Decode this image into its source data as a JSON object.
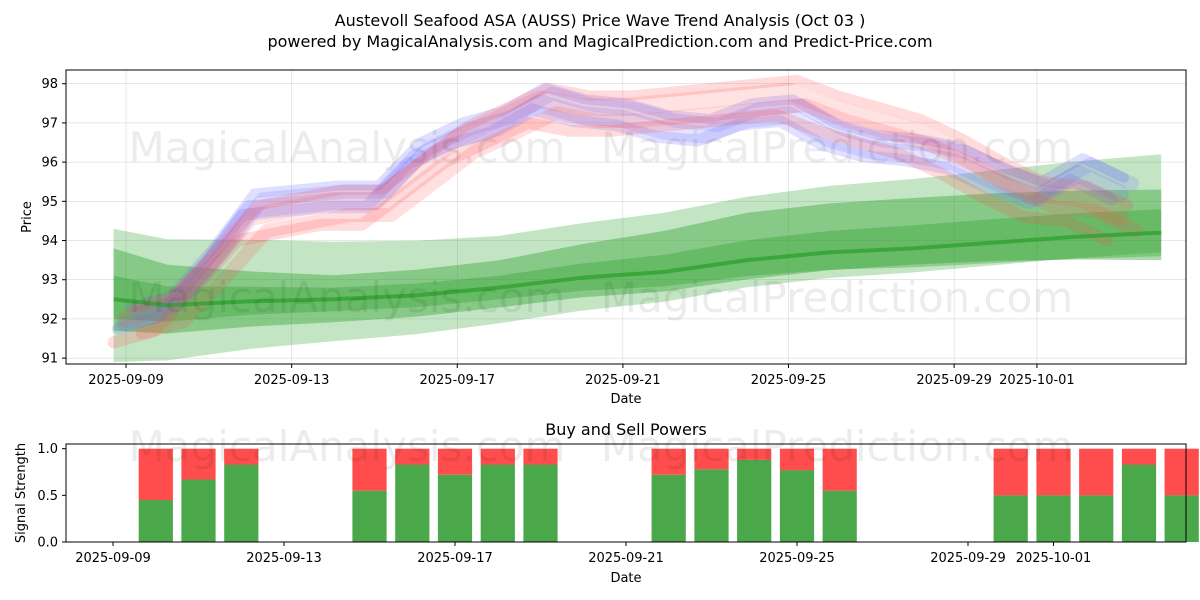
{
  "header": {
    "title": "Austevoll Seafood ASA (AUSS) Price Wave Trend Analysis (Oct 03 )",
    "subtitle": "powered by MagicalAnalysis.com and MagicalPrediction.com and Predict-Price.com"
  },
  "watermarks": [
    "MagicalAnalysis.com",
    "MagicalPrediction.com"
  ],
  "colors": {
    "green": "#2ca02c",
    "red": "#ff4d4d",
    "blue": "#6b6bff",
    "bar_green": "#4aa84a",
    "bar_red": "#ff4d4d"
  },
  "chart_data": [
    {
      "type": "line",
      "title": "",
      "xlabel": "Date",
      "ylabel": "Price",
      "ylim": [
        90.85,
        98.35
      ],
      "yticks": [
        91,
        92,
        93,
        94,
        95,
        96,
        97,
        98
      ],
      "xticks": [
        "2025-09-09",
        "2025-09-13",
        "2025-09-17",
        "2025-09-21",
        "2025-09-25",
        "2025-09-29",
        "2025-10-01"
      ],
      "grid": true,
      "series": [
        {
          "name": "blue wave",
          "color": "#6b6bff",
          "x": [
            9.0,
            10.0,
            11.0,
            12.0,
            13.0,
            14.0,
            15.0,
            16.0,
            17.0,
            18.0,
            19.0,
            20.0,
            21.0,
            22.0,
            23.0,
            24.0,
            25.0,
            26.0,
            27.0,
            28.0,
            29.0,
            30.0,
            31.0,
            32.0,
            33.0
          ],
          "values": [
            91.9,
            92.2,
            93.4,
            94.8,
            94.9,
            95.0,
            95.0,
            96.1,
            96.6,
            96.9,
            97.5,
            97.2,
            97.1,
            96.8,
            96.7,
            97.1,
            97.2,
            96.6,
            96.3,
            96.2,
            96.0,
            95.5,
            95.1,
            95.7,
            95.2
          ]
        },
        {
          "name": "red wave",
          "color": "#ff4d4d",
          "x": [
            9.0,
            10.0,
            11.0,
            12.0,
            13.0,
            14.0,
            15.0,
            16.0,
            17.0,
            18.0,
            19.0,
            20.0,
            21.0,
            22.0,
            23.0,
            24.0,
            25.0,
            26.0,
            27.0,
            28.0,
            29.0,
            30.0,
            31.0,
            32.0,
            33.0
          ],
          "values": [
            92.0,
            92.3,
            93.4,
            94.6,
            94.8,
            95.0,
            95.0,
            95.8,
            96.6,
            97.1,
            97.6,
            97.4,
            97.4,
            97.5,
            97.6,
            97.7,
            97.8,
            97.4,
            97.1,
            96.8,
            96.3,
            95.7,
            95.2,
            95.1,
            94.6
          ]
        },
        {
          "name": "green trend",
          "color": "#2ca02c",
          "x": [
            8.7,
            10.0,
            12.0,
            14.0,
            16.0,
            18.0,
            20.0,
            22.0,
            24.0,
            26.0,
            28.0,
            30.0,
            32.0,
            34.0
          ],
          "values": [
            92.5,
            92.35,
            92.45,
            92.5,
            92.6,
            92.8,
            93.05,
            93.2,
            93.5,
            93.7,
            93.8,
            93.95,
            94.1,
            94.2
          ]
        }
      ]
    },
    {
      "type": "bar",
      "title": "Buy and Sell Powers",
      "xlabel": "Date",
      "ylabel": "Signal Strength",
      "ylim": [
        0,
        1.05
      ],
      "yticks": [
        "0.0",
        "0.5",
        "1.0"
      ],
      "xticks": [
        "2025-09-09",
        "2025-09-13",
        "2025-09-17",
        "2025-09-21",
        "2025-09-25",
        "2025-09-29",
        "2025-10-01"
      ],
      "categories": [
        "2025-09-10",
        "2025-09-11",
        "2025-09-12",
        "2025-09-15",
        "2025-09-16",
        "2025-09-17",
        "2025-09-18",
        "2025-09-19",
        "2025-09-22",
        "2025-09-23",
        "2025-09-24",
        "2025-09-25",
        "2025-09-26",
        "2025-09-30",
        "2025-10-01",
        "2025-10-02",
        "2025-10-03",
        "2025-10-04"
      ],
      "series": [
        {
          "name": "Buy",
          "color": "#4aa84a",
          "values": [
            0.45,
            0.67,
            0.83,
            0.55,
            0.83,
            0.72,
            0.83,
            0.83,
            0.72,
            0.78,
            0.88,
            0.77,
            0.55,
            0.5,
            0.5,
            0.5,
            0.83,
            0.5
          ]
        },
        {
          "name": "Sell",
          "color": "#ff4d4d",
          "values": [
            0.55,
            0.33,
            0.17,
            0.45,
            0.17,
            0.28,
            0.17,
            0.17,
            0.28,
            0.22,
            0.12,
            0.23,
            0.45,
            0.5,
            0.5,
            0.5,
            0.17,
            0.5
          ]
        }
      ]
    }
  ]
}
